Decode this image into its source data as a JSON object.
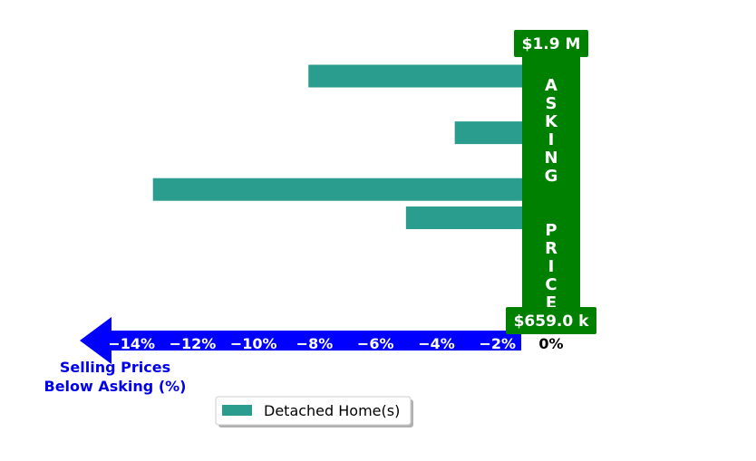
{
  "chart_data": {
    "type": "bar",
    "orientation": "horizontal",
    "series": [
      {
        "name": "Detached Home(s)",
        "color": "#2a9d8f",
        "values": [
          -8.2,
          0.15,
          -3.4,
          0.15,
          -13.3,
          -5.0,
          0.15,
          0.15,
          0.15
        ]
      }
    ],
    "xlim": [
      -15.7,
      1.1
    ],
    "xticks": [
      -14,
      -12,
      -10,
      -8,
      -6,
      -4,
      -2,
      0
    ],
    "xtick_labels": [
      "−14%",
      "−12%",
      "−10%",
      "−8%",
      "−6%",
      "−4%",
      "−2%",
      "0%"
    ],
    "xlabel": "Selling Prices\nBelow Asking (%)",
    "xlabel_lines": [
      "Selling Prices",
      "Below Asking (%)"
    ],
    "asking_price_label": "ASKING PRICE",
    "top_price_label": "$1.9 M",
    "bottom_price_label": "$659.0 k",
    "legend": {
      "entries": [
        "Detached Home(s)"
      ],
      "placement": "bottom-center"
    },
    "colors": {
      "bar": "#2a9d8f",
      "asking_band": "#008000",
      "arrow": "#0000ff",
      "axis_title": "#0000ee"
    },
    "grid": false
  }
}
